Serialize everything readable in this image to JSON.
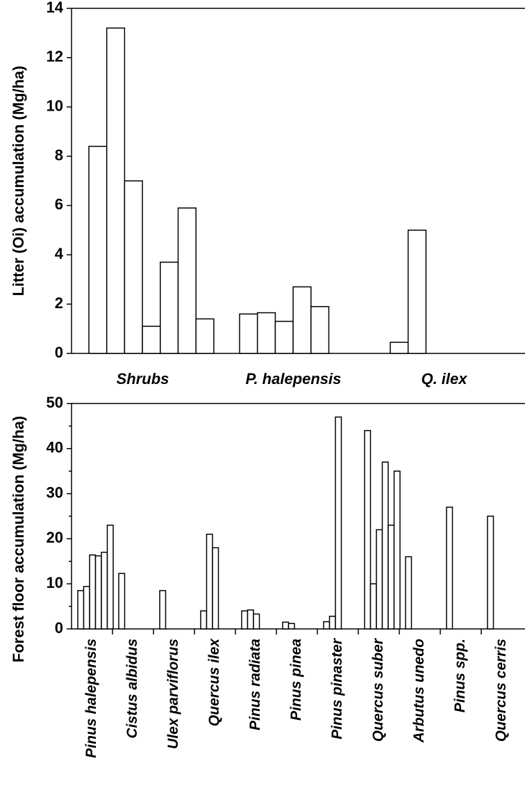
{
  "chart_data": [
    {
      "type": "bar",
      "y_label": "Litter (Oi) accumulation (Mg/ha)",
      "ylim": [
        0,
        14
      ],
      "yticks": [
        0,
        2,
        4,
        6,
        8,
        10,
        12,
        14
      ],
      "color": "#ffffff",
      "groups": [
        {
          "name": "Shrubs",
          "values": [
            8.4,
            13.2,
            7.0,
            1.1,
            3.7,
            5.9,
            1.4
          ]
        },
        {
          "name": "P. halepensis",
          "values": [
            1.6,
            1.65,
            1.3,
            2.7,
            1.9
          ]
        },
        {
          "name": "Q. ilex",
          "values": [
            0.45,
            5.0
          ]
        }
      ]
    },
    {
      "type": "bar",
      "y_label": "Forest floor accumulation (Mg/ha)",
      "ylim": [
        0,
        50
      ],
      "yticks": [
        0,
        10,
        20,
        30,
        40,
        50
      ],
      "yminor": [
        5,
        15,
        25,
        35,
        45
      ],
      "color": "#ffffff",
      "groups": [
        {
          "name": "Pinus halepensis",
          "values": [
            8.5,
            9.4,
            16.4,
            16.2,
            17.0,
            23.0
          ]
        },
        {
          "name": "Cistus albidus",
          "values": [
            12.3
          ]
        },
        {
          "name": "Ulex parviflorus",
          "values": [
            8.5
          ]
        },
        {
          "name": "Quercus ilex",
          "values": [
            4.0,
            21.0,
            18.0
          ]
        },
        {
          "name": "Pinus radiata",
          "values": [
            4.0,
            4.2,
            3.3
          ]
        },
        {
          "name": "Pinus pinea",
          "values": [
            1.5,
            1.2
          ]
        },
        {
          "name": "Pinus pinaster",
          "values": [
            1.6,
            2.8,
            47.0
          ]
        },
        {
          "name": "Quercus suber",
          "values": [
            44.0,
            10.0,
            22.0,
            37.0,
            23.0,
            35.0
          ]
        },
        {
          "name": "Arbutus unedo",
          "values": [
            16.0
          ]
        },
        {
          "name": "Pinus spp.",
          "values": [
            27.0
          ]
        },
        {
          "name": "Quercus cerris",
          "values": [
            25.0
          ]
        }
      ]
    }
  ]
}
